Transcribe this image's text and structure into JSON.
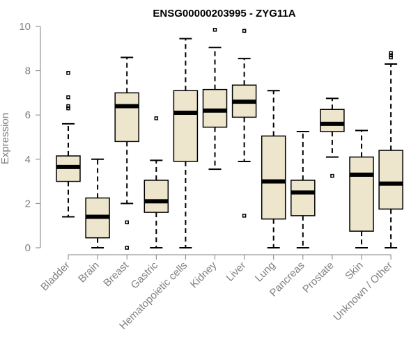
{
  "chart_data": {
    "type": "boxplot",
    "title": "ENSG00000203995 - ZYG11A",
    "xlabel": "",
    "ylabel": "Expression",
    "ylim": [
      0,
      10
    ],
    "yticks": [
      0,
      2,
      4,
      6,
      8,
      10
    ],
    "box_fill": "#ede6cd",
    "categories": [
      "Bladder",
      "Brain",
      "Breast",
      "Gastric",
      "Hematopoietic cells",
      "Kidney",
      "Liver",
      "Lung",
      "Pancreas",
      "Prostate",
      "Skin",
      "Unknown / Other"
    ],
    "boxes": [
      {
        "name": "Bladder",
        "min": 1.4,
        "q1": 3.0,
        "median": 3.65,
        "q3": 4.15,
        "max": 5.6,
        "outliers": [
          6.3,
          6.4,
          6.8,
          7.9
        ]
      },
      {
        "name": "Brain",
        "min": 0.0,
        "q1": 0.45,
        "median": 1.4,
        "q3": 2.25,
        "max": 4.0,
        "outliers": []
      },
      {
        "name": "Breast",
        "min": 2.0,
        "q1": 4.8,
        "median": 6.4,
        "q3": 7.0,
        "max": 8.6,
        "outliers": [
          1.15,
          0.0
        ]
      },
      {
        "name": "Gastric",
        "min": 0.0,
        "q1": 1.6,
        "median": 2.1,
        "q3": 3.05,
        "max": 3.95,
        "outliers": [
          5.85
        ]
      },
      {
        "name": "Hematopoietic cells",
        "min": 0.0,
        "q1": 3.9,
        "median": 6.1,
        "q3": 7.1,
        "max": 9.45,
        "outliers": []
      },
      {
        "name": "Kidney",
        "min": 3.55,
        "q1": 5.45,
        "median": 6.2,
        "q3": 7.15,
        "max": 9.05,
        "outliers": [
          9.85
        ]
      },
      {
        "name": "Liver",
        "min": 3.9,
        "q1": 5.9,
        "median": 6.6,
        "q3": 7.35,
        "max": 8.55,
        "outliers": [
          9.8,
          1.45
        ]
      },
      {
        "name": "Lung",
        "min": 0.0,
        "q1": 1.3,
        "median": 3.0,
        "q3": 5.05,
        "max": 7.1,
        "outliers": []
      },
      {
        "name": "Pancreas",
        "min": 0.0,
        "q1": 1.45,
        "median": 2.5,
        "q3": 3.05,
        "max": 5.25,
        "outliers": []
      },
      {
        "name": "Prostate",
        "min": 4.1,
        "q1": 5.25,
        "median": 5.6,
        "q3": 6.25,
        "max": 6.75,
        "outliers": [
          3.25
        ]
      },
      {
        "name": "Skin",
        "min": 0.0,
        "q1": 0.75,
        "median": 3.3,
        "q3": 4.1,
        "max": 5.3,
        "outliers": []
      },
      {
        "name": "Unknown / Other",
        "min": 0.0,
        "q1": 1.75,
        "median": 2.9,
        "q3": 4.4,
        "max": 8.3,
        "outliers": [
          8.6,
          8.7,
          8.8
        ]
      }
    ]
  }
}
